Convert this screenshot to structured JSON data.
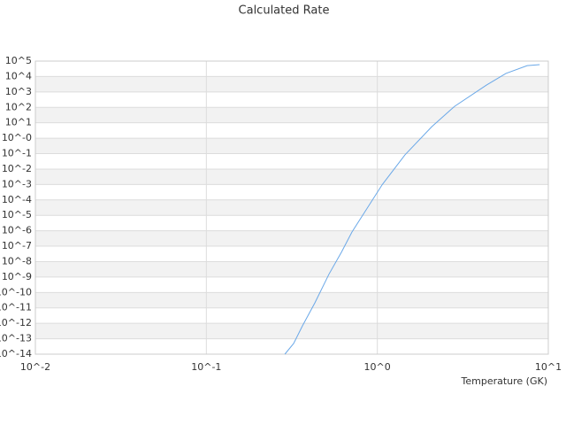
{
  "chart_data": {
    "type": "line",
    "title": "Calculated Rate",
    "x_label": "Temperature (GK)",
    "x_log": true,
    "y_log": true,
    "grid": true,
    "xlim": [
      0.01,
      10
    ],
    "xticks": [
      {
        "value": 0.01,
        "label": "10^-2"
      },
      {
        "value": 0.1,
        "label": "10^-1"
      },
      {
        "value": 1,
        "label": "10^0"
      },
      {
        "value": 10,
        "label": "10^1"
      }
    ],
    "ylim": [
      1e-14,
      100000
    ],
    "yticks": [
      {
        "value": 1e-14,
        "label": "10^-14"
      },
      {
        "value": 1e-13,
        "label": "10^-13"
      },
      {
        "value": 1e-12,
        "label": "10^-12"
      },
      {
        "value": 1e-11,
        "label": "10^-11"
      },
      {
        "value": 1e-10,
        "label": "10^-10"
      },
      {
        "value": 1e-09,
        "label": "10^-9"
      },
      {
        "value": 1e-08,
        "label": "10^-8"
      },
      {
        "value": 1e-07,
        "label": "10^-7"
      },
      {
        "value": 1e-06,
        "label": "10^-6"
      },
      {
        "value": 1e-05,
        "label": "10^-5"
      },
      {
        "value": 0.0001,
        "label": "10^-4"
      },
      {
        "value": 0.001,
        "label": "10^-3"
      },
      {
        "value": 0.01,
        "label": "10^-2"
      },
      {
        "value": 0.1,
        "label": "10^-1"
      },
      {
        "value": 1,
        "label": "10^-0"
      },
      {
        "value": 10,
        "label": "10^1"
      },
      {
        "value": 100,
        "label": "10^2"
      },
      {
        "value": 1000,
        "label": "10^3"
      },
      {
        "value": 10000,
        "label": "10^4"
      },
      {
        "value": 100000,
        "label": "10^5"
      }
    ],
    "series": [
      {
        "color": "#6aa8e8",
        "x": [
          0.288,
          0.324,
          0.365,
          0.431,
          0.521,
          0.616,
          0.711,
          0.84,
          1.07,
          1.45,
          2.08,
          2.83,
          4.35,
          5.65,
          7.52,
          8.9
        ],
        "values": [
          1e-14,
          4.9e-14,
          6.9e-13,
          2.1e-11,
          1.5e-09,
          4e-08,
          8.3e-07,
          1.5e-05,
          0.001,
          0.083,
          5.6,
          117,
          2800,
          16000,
          51000,
          59000
        ]
      }
    ]
  }
}
